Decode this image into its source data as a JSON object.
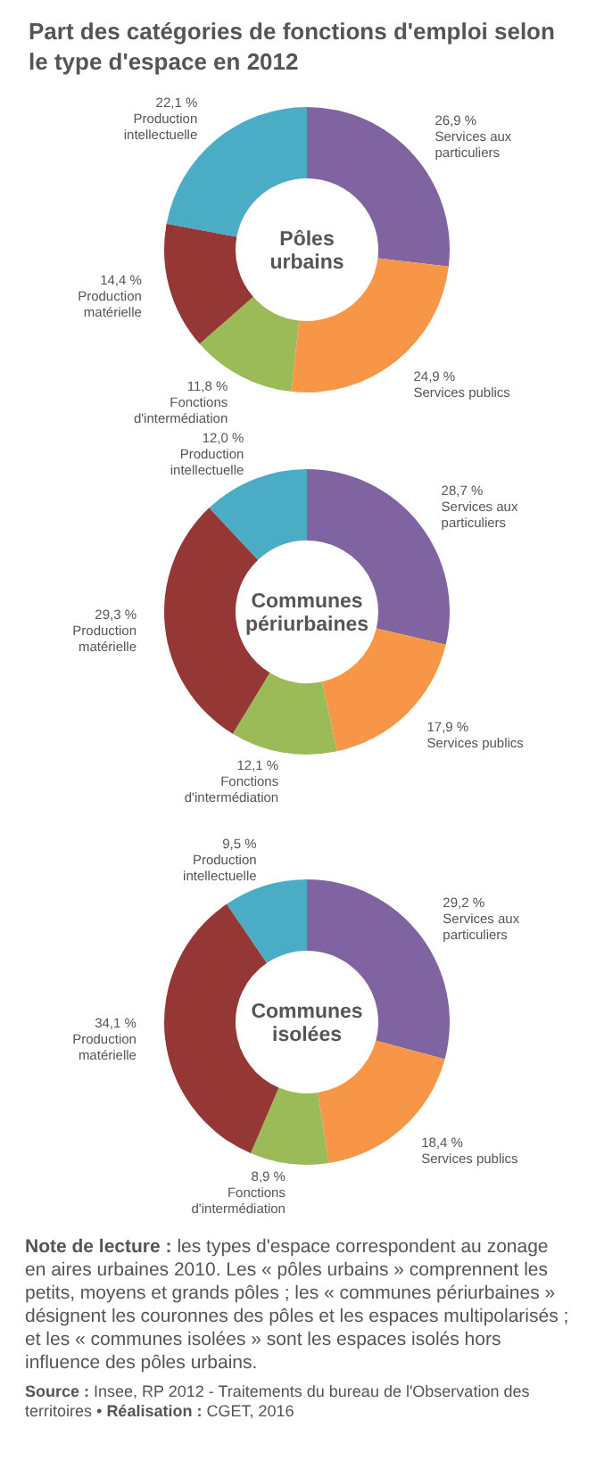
{
  "chart_data": [
    {
      "type": "donut",
      "title": "Part des catégories de fonctions d'emploi selon le type d'espace en 2012",
      "subtitle": "Pôles urbains",
      "categories": [
        "Services aux particuliers",
        "Services publics",
        "Fonctions d'intermédiation",
        "Production matérielle",
        "Production intellectuelle"
      ],
      "values": [
        26.9,
        24.9,
        11.8,
        14.4,
        22.1
      ],
      "value_labels": [
        "26,9 %",
        "24,9 %",
        "11,8 %",
        "14,4 %",
        "22,1 %"
      ],
      "colors": [
        "#8064a2",
        "#f79646",
        "#9bbb59",
        "#953735",
        "#4bacc6"
      ]
    },
    {
      "type": "donut",
      "subtitle": "Communes périurbaines",
      "categories": [
        "Services aux particuliers",
        "Services publics",
        "Fonctions d'intermédiation",
        "Production matérielle",
        "Production intellectuelle"
      ],
      "values": [
        28.7,
        17.9,
        12.1,
        29.3,
        12.0
      ],
      "value_labels": [
        "28,7 %",
        "17,9 %",
        "12,1 %",
        "29,3 %",
        "12,0 %"
      ],
      "colors": [
        "#8064a2",
        "#f79646",
        "#9bbb59",
        "#953735",
        "#4bacc6"
      ]
    },
    {
      "type": "donut",
      "subtitle": "Communes isolées",
      "categories": [
        "Services aux particuliers",
        "Services publics",
        "Fonctions d'intermédiation",
        "Production matérielle",
        "Production intellectuelle"
      ],
      "values": [
        29.2,
        18.4,
        8.9,
        34.1,
        9.5
      ],
      "value_labels": [
        "29,2 %",
        "18,4 %",
        "8,9 %",
        "34,1 %",
        "9,5 %"
      ],
      "colors": [
        "#8064a2",
        "#f79646",
        "#9bbb59",
        "#953735",
        "#4bacc6"
      ],
      "annotations": [
        "Note de lecture : les types d'espace correspondent au zonage en aires urbaines 2010. Les « pôles urbains » comprennent les petits, moyens et grands pôles ; les « communes périurbaines » désignent les couronnes des pôles et les espaces multipolarisés ; et les « communes isolées » sont les espaces isolés hors influence des pôles urbains.",
        "Source : Insee, RP 2012 - Traitements du bureau de l'Observation des territoires • Réalisation : CGET, 2016"
      ]
    }
  ]
}
